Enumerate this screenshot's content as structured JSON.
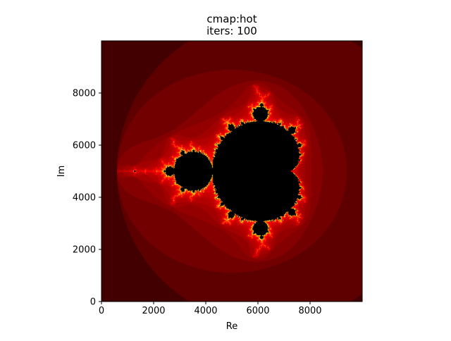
{
  "chart_data": {
    "type": "heatmap",
    "title_lines": [
      "cmap:hot",
      "iters: 100"
    ],
    "xlabel": "Re",
    "ylabel": "Im",
    "xlim": [
      0,
      10000
    ],
    "ylim": [
      0,
      10000
    ],
    "xticks": [
      0,
      2000,
      4000,
      6000,
      8000
    ],
    "yticks": [
      0,
      2000,
      4000,
      6000,
      8000
    ],
    "colormap": "hot",
    "max_iterations": 100,
    "colors": {
      "set_interior": "#000000",
      "edge_dark": "#300000",
      "edge_red": "#c80000",
      "edge_yellow": "#ffe000"
    }
  }
}
